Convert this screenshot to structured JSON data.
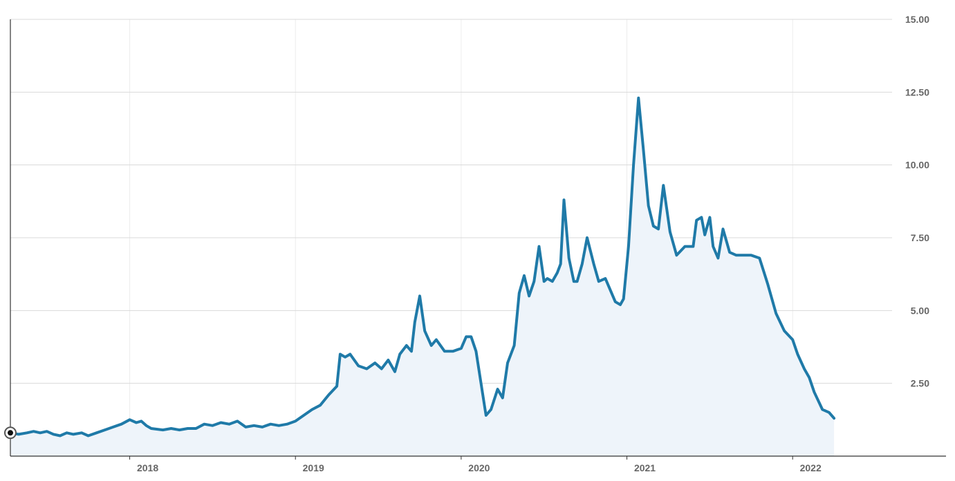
{
  "chart_data": {
    "type": "area",
    "title": "",
    "xlabel": "",
    "ylabel": "",
    "y_axis_position": "right",
    "grid": true,
    "legend": "none",
    "xlim": [
      2017.28,
      2022.6
    ],
    "ylim": [
      0,
      15
    ],
    "y_ticks": [
      2.5,
      5,
      7.5,
      10,
      12.5,
      15
    ],
    "y_tick_labels": [
      "2.50",
      "5.00",
      "7.50",
      "10.00",
      "12.50",
      "15.00"
    ],
    "x_ticks": [
      2018,
      2019,
      2020,
      2021,
      2022
    ],
    "x_tick_labels": [
      "2018",
      "2019",
      "2020",
      "2021",
      "2022"
    ],
    "colors": {
      "line": "#1f7aa8",
      "fill": "#eef4fa",
      "grid": "#d9d9d9",
      "axis": "#333333",
      "tick_text": "#666666"
    },
    "series": [
      {
        "x": [
          2017.28,
          2017.33,
          2017.38,
          2017.42,
          2017.46,
          2017.5,
          2017.54,
          2017.58,
          2017.62,
          2017.66,
          2017.71,
          2017.75,
          2017.8,
          2017.85,
          2017.9,
          2017.95,
          2018.0,
          2018.04,
          2018.07,
          2018.1,
          2018.13,
          2018.2,
          2018.25,
          2018.3,
          2018.35,
          2018.4,
          2018.45,
          2018.5,
          2018.55,
          2018.6,
          2018.65,
          2018.7,
          2018.75,
          2018.8,
          2018.85,
          2018.9,
          2018.95,
          2019.0,
          2019.05,
          2019.1,
          2019.15,
          2019.2,
          2019.25,
          2019.27,
          2019.3,
          2019.33,
          2019.38,
          2019.43,
          2019.48,
          2019.52,
          2019.56,
          2019.6,
          2019.63,
          2019.67,
          2019.7,
          2019.72,
          2019.75,
          2019.78,
          2019.82,
          2019.85,
          2019.9,
          2019.95,
          2020.0,
          2020.03,
          2020.06,
          2020.09,
          2020.12,
          2020.15,
          2020.18,
          2020.22,
          2020.25,
          2020.28,
          2020.32,
          2020.35,
          2020.38,
          2020.41,
          2020.44,
          2020.47,
          2020.5,
          2020.52,
          2020.55,
          2020.58,
          2020.6,
          2020.62,
          2020.65,
          2020.68,
          2020.7,
          2020.73,
          2020.76,
          2020.8,
          2020.83,
          2020.87,
          2020.9,
          2020.93,
          2020.96,
          2020.98,
          2021.01,
          2021.04,
          2021.07,
          2021.1,
          2021.13,
          2021.16,
          2021.19,
          2021.22,
          2021.26,
          2021.3,
          2021.35,
          2021.4,
          2021.42,
          2021.45,
          2021.47,
          2021.5,
          2021.52,
          2021.55,
          2021.58,
          2021.62,
          2021.66,
          2021.7,
          2021.75,
          2021.8,
          2021.85,
          2021.9,
          2021.95,
          2022.0,
          2022.03,
          2022.07,
          2022.1,
          2022.13,
          2022.18,
          2022.22,
          2022.25
        ],
        "values": [
          0.8,
          0.75,
          0.8,
          0.85,
          0.8,
          0.85,
          0.75,
          0.7,
          0.8,
          0.75,
          0.8,
          0.7,
          0.8,
          0.9,
          1.0,
          1.1,
          1.25,
          1.15,
          1.2,
          1.05,
          0.95,
          0.9,
          0.95,
          0.9,
          0.95,
          0.95,
          1.1,
          1.05,
          1.15,
          1.1,
          1.2,
          1.0,
          1.05,
          1.0,
          1.1,
          1.05,
          1.1,
          1.2,
          1.4,
          1.6,
          1.75,
          2.1,
          2.4,
          3.5,
          3.4,
          3.5,
          3.1,
          3.0,
          3.2,
          3.0,
          3.3,
          2.9,
          3.5,
          3.8,
          3.6,
          4.6,
          5.5,
          4.3,
          3.8,
          4.0,
          3.6,
          3.6,
          3.7,
          4.1,
          4.1,
          3.6,
          2.5,
          1.4,
          1.6,
          2.3,
          2.0,
          3.2,
          3.8,
          5.6,
          6.2,
          5.5,
          6.0,
          7.2,
          6.0,
          6.1,
          6.0,
          6.3,
          6.6,
          8.8,
          6.8,
          6.0,
          6.0,
          6.6,
          7.5,
          6.6,
          6.0,
          6.1,
          5.7,
          5.3,
          5.2,
          5.4,
          7.2,
          10.0,
          12.3,
          10.5,
          8.6,
          7.9,
          7.8,
          9.3,
          7.7,
          6.9,
          7.2,
          7.2,
          8.1,
          8.2,
          7.6,
          8.2,
          7.2,
          6.8,
          7.8,
          7.0,
          6.9,
          6.9,
          6.9,
          6.8,
          5.9,
          4.9,
          4.3,
          4.0,
          3.5,
          3.0,
          2.7,
          2.2,
          1.6,
          1.5,
          1.3
        ],
        "area": true
      }
    ]
  }
}
